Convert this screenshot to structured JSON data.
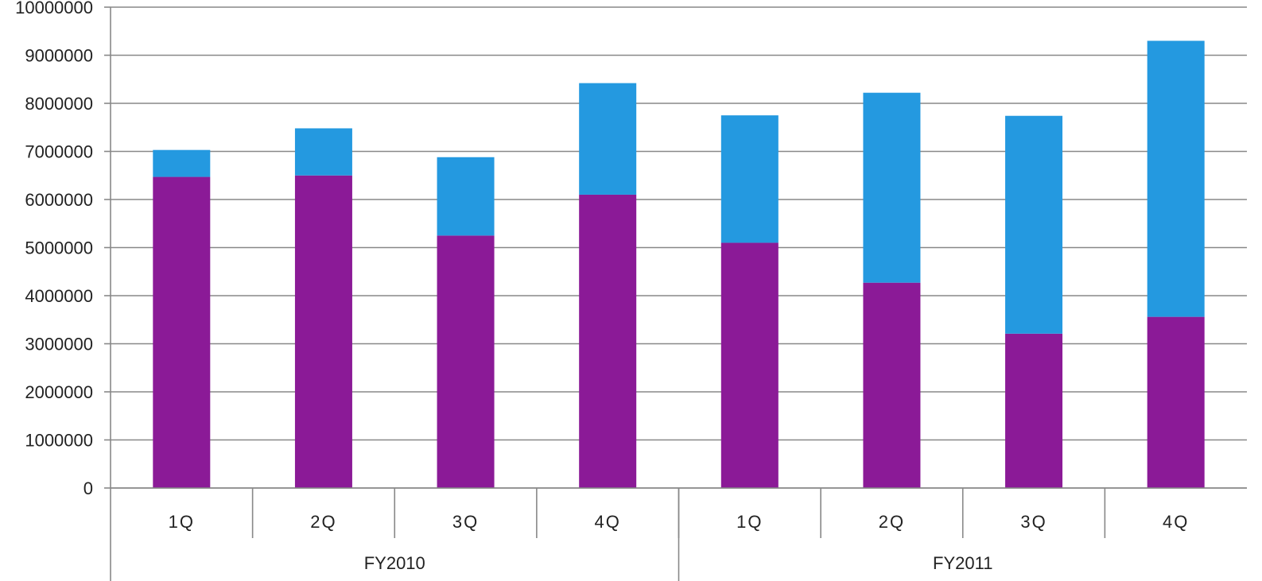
{
  "chart_data": {
    "type": "bar",
    "stacked": true,
    "categories": [
      "1Q",
      "2Q",
      "3Q",
      "4Q",
      "1Q",
      "2Q",
      "3Q",
      "4Q"
    ],
    "groups": [
      {
        "label": "FY2010",
        "span": 4
      },
      {
        "label": "FY2011",
        "span": 4
      }
    ],
    "series": [
      {
        "color": "#8B1A97",
        "values": [
          6470000,
          6500000,
          5250000,
          6100000,
          5100000,
          4270000,
          3210000,
          3560000
        ]
      },
      {
        "color": "#2499E0",
        "values": [
          560000,
          980000,
          1630000,
          2320000,
          2650000,
          3950000,
          4530000,
          5740000
        ]
      }
    ],
    "yticks": [
      0,
      1000000,
      2000000,
      3000000,
      4000000,
      5000000,
      6000000,
      7000000,
      8000000,
      9000000,
      10000000
    ],
    "ylim": [
      0,
      10000000
    ],
    "top_tick_label": "10000000",
    "title": "",
    "xlabel": "",
    "ylabel": "",
    "grid": true,
    "legend": "none",
    "gridline_color": "#888888"
  }
}
